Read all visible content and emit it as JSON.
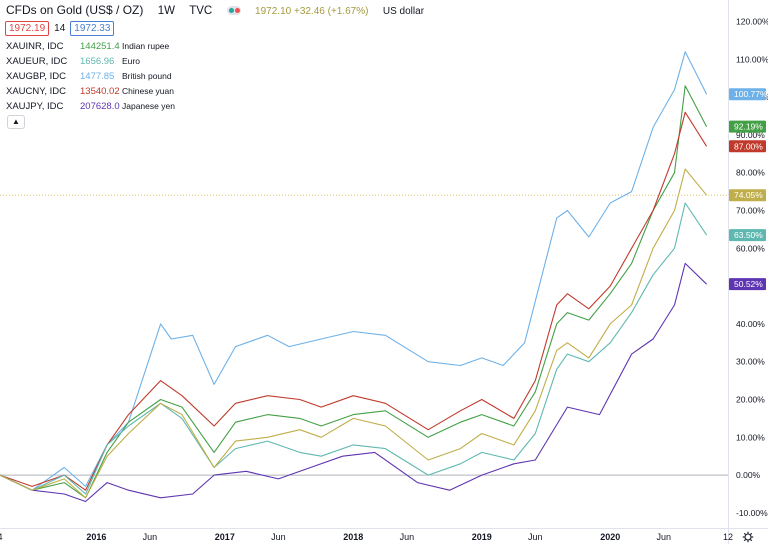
{
  "header": {
    "title": "CFDs on Gold (US$ / OZ)",
    "interval": "1W",
    "source": "TVC",
    "quote": "1972.10 +32.46 (+1.67%)",
    "currency": "US dollar",
    "bid": "1972.19",
    "spread": "14",
    "ask": "1972.33",
    "colors": {
      "bid": "#e04545",
      "ask": "#4a7fd4",
      "quote": "#a59a3f"
    }
  },
  "legend": [
    {
      "symbol": "XAUINR, IDC",
      "value": "144251.4",
      "currency": "Indian rupee",
      "color": "#43a047"
    },
    {
      "symbol": "XAUEUR, IDC",
      "value": "1656.96",
      "currency": "Euro",
      "color": "#5fb8b0"
    },
    {
      "symbol": "XAUGBP, IDC",
      "value": "1477.85",
      "currency": "British pound",
      "color": "#6eb1e8"
    },
    {
      "symbol": "XAUCNY, IDC",
      "value": "13540.02",
      "currency": "Chinese yuan",
      "color": "#c0392b"
    },
    {
      "symbol": "XAUJPY, IDC",
      "value": "207628.0",
      "currency": "Japanese yen",
      "color": "#5e35b1"
    }
  ],
  "collapse_icon": "chevron-up-icon",
  "footer": {
    "settings_icon": "gear-icon"
  },
  "chart_data": {
    "type": "line",
    "x_unit": "date (weekly)",
    "xlim": [
      "2015-04",
      "2020-12"
    ],
    "ylim": [
      -14,
      122
    ],
    "y_unit": "%",
    "grid": false,
    "x_ticks": [
      {
        "label": "4",
        "date": "2015-04"
      },
      {
        "label": "2016",
        "date": "2016-01"
      },
      {
        "label": "Jun",
        "date": "2016-06"
      },
      {
        "label": "2017",
        "date": "2017-01"
      },
      {
        "label": "Jun",
        "date": "2017-06"
      },
      {
        "label": "2018",
        "date": "2018-01"
      },
      {
        "label": "Jun",
        "date": "2018-06"
      },
      {
        "label": "2019",
        "date": "2019-01"
      },
      {
        "label": "Jun",
        "date": "2019-06"
      },
      {
        "label": "2020",
        "date": "2020-01"
      },
      {
        "label": "Jun",
        "date": "2020-06"
      },
      {
        "label": "12",
        "date": "2020-12"
      }
    ],
    "y_ticks": [
      {
        "label": "-10.00%",
        "value": -10
      },
      {
        "label": "0.00%",
        "value": 0
      },
      {
        "label": "10.00%",
        "value": 10
      },
      {
        "label": "20.00%",
        "value": 20
      },
      {
        "label": "30.00%",
        "value": 30
      },
      {
        "label": "40.00%",
        "value": 40
      },
      {
        "label": "50.00%",
        "value": 50
      },
      {
        "label": "60.00%",
        "value": 60
      },
      {
        "label": "70.00%",
        "value": 70
      },
      {
        "label": "80.00%",
        "value": 80
      },
      {
        "label": "90.00%",
        "value": 90
      },
      {
        "label": "100.00%",
        "value": 100
      },
      {
        "label": "110.00%",
        "value": 110
      },
      {
        "label": "120.00%",
        "value": 120
      }
    ],
    "reference_lines": [
      {
        "value": 0,
        "color": "#b2b5be",
        "style": "solid"
      },
      {
        "value": 74.05,
        "color": "#d9c36a",
        "style": "dotted"
      }
    ],
    "series": [
      {
        "name": "XAUGBP, IDC",
        "color": "#6eb1e8",
        "last_label": "100.77%",
        "last_value": 100.77,
        "points": [
          [
            "2015-04",
            0
          ],
          [
            "2015-07",
            -4
          ],
          [
            "2015-10",
            2
          ],
          [
            "2015-12",
            -3
          ],
          [
            "2016-02",
            8
          ],
          [
            "2016-04",
            14
          ],
          [
            "2016-07",
            40
          ],
          [
            "2016-08",
            36
          ],
          [
            "2016-10",
            37
          ],
          [
            "2016-12",
            24
          ],
          [
            "2017-02",
            34
          ],
          [
            "2017-05",
            37
          ],
          [
            "2017-07",
            34
          ],
          [
            "2017-10",
            36
          ],
          [
            "2018-01",
            38
          ],
          [
            "2018-04",
            37
          ],
          [
            "2018-08",
            30
          ],
          [
            "2018-11",
            29
          ],
          [
            "2019-01",
            31
          ],
          [
            "2019-03",
            29
          ],
          [
            "2019-05",
            35
          ],
          [
            "2019-08",
            68
          ],
          [
            "2019-09",
            70
          ],
          [
            "2019-11",
            63
          ],
          [
            "2020-01",
            72
          ],
          [
            "2020-03",
            75
          ],
          [
            "2020-05",
            92
          ],
          [
            "2020-07",
            102
          ],
          [
            "2020-08",
            112
          ],
          [
            "2020-10",
            100.77
          ]
        ]
      },
      {
        "name": "XAUINR, IDC",
        "color": "#43a047",
        "last_label": "92.19%",
        "last_value": 92.19,
        "points": [
          [
            "2015-04",
            0
          ],
          [
            "2015-07",
            -4
          ],
          [
            "2015-10",
            -2
          ],
          [
            "2015-12",
            -6
          ],
          [
            "2016-02",
            6
          ],
          [
            "2016-04",
            14
          ],
          [
            "2016-07",
            20
          ],
          [
            "2016-09",
            18
          ],
          [
            "2016-12",
            6
          ],
          [
            "2017-02",
            14
          ],
          [
            "2017-05",
            16
          ],
          [
            "2017-08",
            15
          ],
          [
            "2017-10",
            13
          ],
          [
            "2018-01",
            16
          ],
          [
            "2018-04",
            17
          ],
          [
            "2018-08",
            10
          ],
          [
            "2018-11",
            14
          ],
          [
            "2019-01",
            16
          ],
          [
            "2019-04",
            13
          ],
          [
            "2019-06",
            22
          ],
          [
            "2019-08",
            40
          ],
          [
            "2019-09",
            43
          ],
          [
            "2019-11",
            41
          ],
          [
            "2020-01",
            48
          ],
          [
            "2020-03",
            56
          ],
          [
            "2020-05",
            70
          ],
          [
            "2020-07",
            80
          ],
          [
            "2020-08",
            103
          ],
          [
            "2020-10",
            92.19
          ]
        ]
      },
      {
        "name": "XAUCNY, IDC",
        "color": "#c0392b",
        "last_label": "87.00%",
        "last_value": 87.0,
        "points": [
          [
            "2015-04",
            0
          ],
          [
            "2015-07",
            -3
          ],
          [
            "2015-10",
            0
          ],
          [
            "2015-12",
            -4
          ],
          [
            "2016-02",
            8
          ],
          [
            "2016-04",
            16
          ],
          [
            "2016-07",
            25
          ],
          [
            "2016-09",
            21
          ],
          [
            "2016-12",
            13
          ],
          [
            "2017-02",
            19
          ],
          [
            "2017-05",
            21
          ],
          [
            "2017-08",
            20
          ],
          [
            "2017-10",
            18
          ],
          [
            "2018-01",
            21
          ],
          [
            "2018-04",
            19
          ],
          [
            "2018-08",
            12
          ],
          [
            "2018-11",
            17
          ],
          [
            "2019-01",
            20
          ],
          [
            "2019-04",
            15
          ],
          [
            "2019-06",
            25
          ],
          [
            "2019-08",
            45
          ],
          [
            "2019-09",
            48
          ],
          [
            "2019-11",
            44
          ],
          [
            "2020-01",
            50
          ],
          [
            "2020-03",
            60
          ],
          [
            "2020-05",
            70
          ],
          [
            "2020-07",
            85
          ],
          [
            "2020-08",
            96
          ],
          [
            "2020-10",
            87.0
          ]
        ]
      },
      {
        "name": "XAUJPY, IDC",
        "color": "#5e35b1",
        "last_label": "50.52%",
        "last_value": 50.52,
        "points": [
          [
            "2015-04",
            0
          ],
          [
            "2015-07",
            -4
          ],
          [
            "2015-10",
            -5
          ],
          [
            "2015-12",
            -7
          ],
          [
            "2016-02",
            -2
          ],
          [
            "2016-04",
            -4
          ],
          [
            "2016-07",
            -6
          ],
          [
            "2016-10",
            -5
          ],
          [
            "2016-12",
            0
          ],
          [
            "2017-03",
            1
          ],
          [
            "2017-06",
            -1
          ],
          [
            "2017-09",
            2
          ],
          [
            "2017-12",
            5
          ],
          [
            "2018-03",
            6
          ],
          [
            "2018-07",
            -2
          ],
          [
            "2018-10",
            -4
          ],
          [
            "2019-01",
            0
          ],
          [
            "2019-04",
            3
          ],
          [
            "2019-06",
            4
          ],
          [
            "2019-09",
            18
          ],
          [
            "2019-12",
            16
          ],
          [
            "2020-03",
            32
          ],
          [
            "2020-05",
            36
          ],
          [
            "2020-07",
            45
          ],
          [
            "2020-08",
            56
          ],
          [
            "2020-10",
            50.52
          ]
        ]
      },
      {
        "name": "XAUEUR, IDC",
        "color": "#5fb8b0",
        "last_label": "63.50%",
        "last_value": 63.5,
        "points": [
          [
            "2015-04",
            0
          ],
          [
            "2015-07",
            -4
          ],
          [
            "2015-10",
            0
          ],
          [
            "2015-12",
            -5
          ],
          [
            "2016-02",
            8
          ],
          [
            "2016-04",
            13
          ],
          [
            "2016-07",
            19
          ],
          [
            "2016-09",
            15
          ],
          [
            "2016-12",
            2
          ],
          [
            "2017-02",
            7
          ],
          [
            "2017-05",
            9
          ],
          [
            "2017-08",
            6
          ],
          [
            "2017-10",
            5
          ],
          [
            "2018-01",
            8
          ],
          [
            "2018-04",
            7
          ],
          [
            "2018-08",
            0
          ],
          [
            "2018-11",
            3
          ],
          [
            "2019-01",
            6
          ],
          [
            "2019-04",
            4
          ],
          [
            "2019-06",
            11
          ],
          [
            "2019-08",
            28
          ],
          [
            "2019-09",
            32
          ],
          [
            "2019-11",
            30
          ],
          [
            "2020-01",
            35
          ],
          [
            "2020-03",
            43
          ],
          [
            "2020-05",
            53
          ],
          [
            "2020-07",
            60
          ],
          [
            "2020-08",
            72
          ],
          [
            "2020-10",
            63.5
          ]
        ]
      },
      {
        "name": "Gold (US$)",
        "color": "#bfae4a",
        "last_label": "74.05%",
        "last_value": 74.05,
        "points": [
          [
            "2015-04",
            0
          ],
          [
            "2015-07",
            -4
          ],
          [
            "2015-10",
            -1
          ],
          [
            "2015-12",
            -6
          ],
          [
            "2016-02",
            5
          ],
          [
            "2016-04",
            11
          ],
          [
            "2016-07",
            19
          ],
          [
            "2016-09",
            16
          ],
          [
            "2016-12",
            2
          ],
          [
            "2017-02",
            9
          ],
          [
            "2017-05",
            10
          ],
          [
            "2017-08",
            12
          ],
          [
            "2017-10",
            10
          ],
          [
            "2018-01",
            15
          ],
          [
            "2018-04",
            13
          ],
          [
            "2018-08",
            4
          ],
          [
            "2018-11",
            7
          ],
          [
            "2019-01",
            11
          ],
          [
            "2019-04",
            8
          ],
          [
            "2019-06",
            17
          ],
          [
            "2019-08",
            33
          ],
          [
            "2019-09",
            35
          ],
          [
            "2019-11",
            31
          ],
          [
            "2020-01",
            40
          ],
          [
            "2020-03",
            45
          ],
          [
            "2020-05",
            60
          ],
          [
            "2020-07",
            70
          ],
          [
            "2020-08",
            81
          ],
          [
            "2020-10",
            74.05
          ]
        ]
      }
    ]
  }
}
